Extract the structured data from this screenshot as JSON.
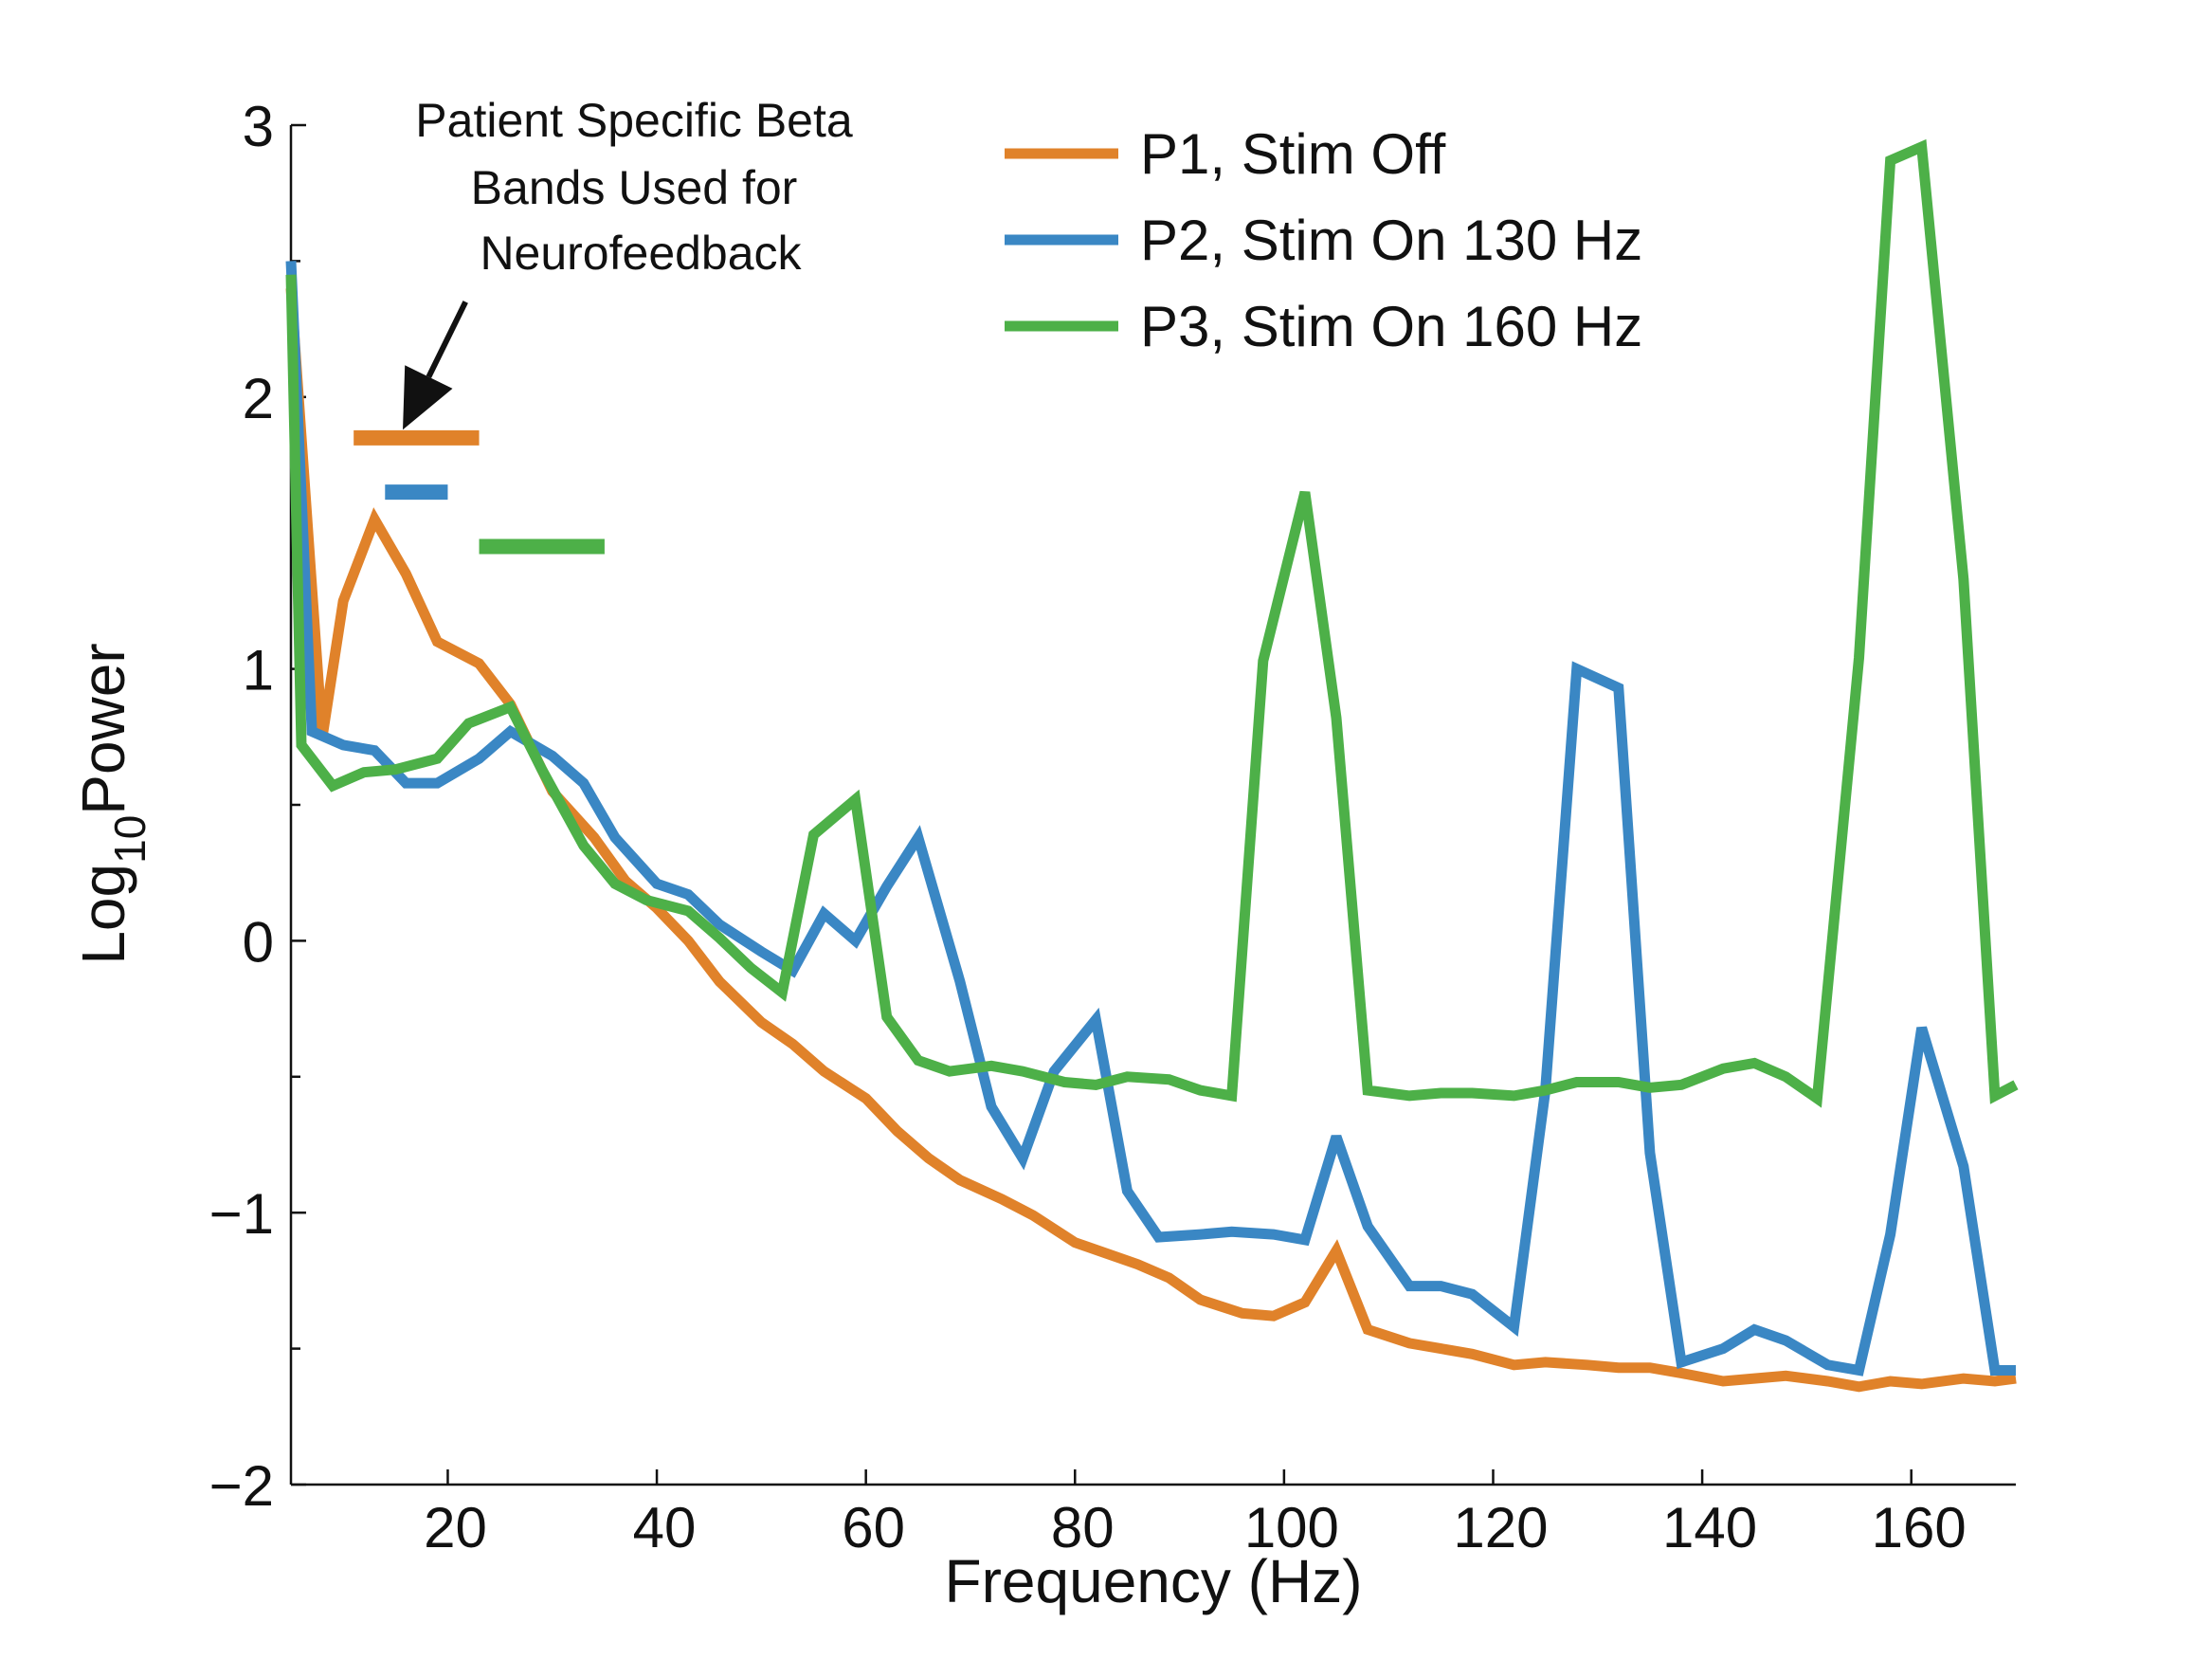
{
  "chart_data": {
    "type": "line",
    "xlabel": "Frequency (Hz)",
    "ylabel": {
      "prefix": "Log",
      "subscript": "10",
      "suffix": "Power"
    },
    "xlim": [
      5,
      170
    ],
    "ylim": [
      -2,
      3
    ],
    "xticks": [
      {
        "value": 20,
        "label": "20"
      },
      {
        "value": 40,
        "label": "40"
      },
      {
        "value": 60,
        "label": "60"
      },
      {
        "value": 80,
        "label": "80"
      },
      {
        "value": 100,
        "label": "100"
      },
      {
        "value": 120,
        "label": "120"
      },
      {
        "value": 140,
        "label": "140"
      },
      {
        "value": 160,
        "label": "160"
      }
    ],
    "yticks": [
      {
        "value": -2,
        "label": "−2"
      },
      {
        "value": -1,
        "label": "−1"
      },
      {
        "value": 0,
        "label": "0"
      },
      {
        "value": 1,
        "label": "1"
      },
      {
        "value": 2,
        "label": "2"
      },
      {
        "value": 3,
        "label": "3"
      }
    ],
    "yminor": [
      -1.5,
      -0.5,
      0.5,
      1.5,
      2.5
    ],
    "grid": false,
    "legend_position": "top-right",
    "annotation": {
      "lines": [
        "Patient Specific Beta",
        "Bands Used for",
        "Neurofeedback"
      ],
      "arrow_from": [
        21.7,
        2.35
      ],
      "arrow_to": [
        15.7,
        1.88
      ]
    },
    "series": [
      {
        "name": "P1, Stim Off",
        "color": "#E0822A",
        "band": [
          11,
          23
        ],
        "band_y": 1.85,
        "x": [
          5,
          8,
          10,
          13,
          16,
          19,
          23,
          26,
          30,
          34,
          37,
          40,
          43,
          46,
          50,
          53,
          56,
          60,
          63,
          66,
          69,
          73,
          76,
          80,
          83,
          86,
          89,
          92,
          96,
          99,
          102,
          105,
          108,
          112,
          115,
          118,
          122,
          125,
          129,
          132,
          135,
          138,
          142,
          145,
          148,
          152,
          155,
          158,
          161,
          165,
          168,
          170
        ],
        "y": [
          2.4,
          0.75,
          1.25,
          1.55,
          1.35,
          1.1,
          1.02,
          0.87,
          0.55,
          0.38,
          0.22,
          0.12,
          0.0,
          -0.15,
          -0.3,
          -0.38,
          -0.48,
          -0.58,
          -0.7,
          -0.8,
          -0.88,
          -0.95,
          -1.01,
          -1.11,
          -1.15,
          -1.19,
          -1.24,
          -1.32,
          -1.37,
          -1.38,
          -1.33,
          -1.14,
          -1.43,
          -1.48,
          -1.5,
          -1.52,
          -1.56,
          -1.55,
          -1.56,
          -1.57,
          -1.57,
          -1.59,
          -1.62,
          -1.61,
          -1.6,
          -1.62,
          -1.64,
          -1.62,
          -1.63,
          -1.61,
          -1.62,
          -1.61
        ]
      },
      {
        "name": "P2, Stim On 130 Hz",
        "color": "#3A87C4",
        "band": [
          14,
          20
        ],
        "band_y": 1.65,
        "x": [
          5,
          7,
          10,
          13,
          16,
          19,
          23,
          26,
          30,
          33,
          36,
          40,
          43,
          46,
          50,
          53,
          56,
          59,
          62,
          65,
          69,
          72,
          75,
          78,
          82,
          85,
          88,
          92,
          95,
          99,
          102,
          105,
          108,
          112,
          115,
          118,
          122,
          125,
          128,
          132,
          135,
          138,
          142,
          145,
          148,
          152,
          155,
          158,
          161,
          165,
          168,
          170
        ],
        "y": [
          2.5,
          0.77,
          0.72,
          0.7,
          0.58,
          0.58,
          0.67,
          0.77,
          0.68,
          0.58,
          0.38,
          0.21,
          0.17,
          0.06,
          -0.04,
          -0.11,
          0.1,
          0.0,
          0.2,
          0.38,
          -0.15,
          -0.61,
          -0.8,
          -0.48,
          -0.29,
          -0.92,
          -1.09,
          -1.08,
          -1.07,
          -1.08,
          -1.1,
          -0.72,
          -1.05,
          -1.27,
          -1.27,
          -1.3,
          -1.42,
          -0.55,
          1.0,
          0.93,
          -0.78,
          -1.55,
          -1.5,
          -1.43,
          -1.47,
          -1.56,
          -1.58,
          -1.08,
          -0.32,
          -0.83,
          -1.58,
          -1.58
        ]
      },
      {
        "name": "P3, Stim On 160 Hz",
        "color": "#4DB048",
        "band": [
          23,
          35
        ],
        "band_y": 1.45,
        "x": [
          5,
          6,
          9,
          12,
          15,
          19,
          22,
          26,
          29,
          33,
          36,
          39,
          43,
          46,
          49,
          52,
          55,
          59,
          62,
          65,
          68,
          72,
          75,
          79,
          82,
          85,
          89,
          92,
          95,
          98,
          102,
          105,
          108,
          112,
          115,
          118,
          122,
          125,
          128,
          132,
          135,
          138,
          142,
          145,
          148,
          151,
          155,
          158,
          161,
          165,
          168,
          170
        ],
        "y": [
          2.45,
          0.72,
          0.57,
          0.62,
          0.63,
          0.67,
          0.8,
          0.86,
          0.63,
          0.35,
          0.21,
          0.15,
          0.11,
          0.01,
          -0.1,
          -0.19,
          0.39,
          0.52,
          -0.28,
          -0.44,
          -0.48,
          -0.46,
          -0.48,
          -0.52,
          -0.53,
          -0.5,
          -0.51,
          -0.55,
          -0.57,
          1.03,
          1.65,
          0.82,
          -0.55,
          -0.57,
          -0.56,
          -0.56,
          -0.57,
          -0.55,
          -0.52,
          -0.52,
          -0.54,
          -0.53,
          -0.47,
          -0.45,
          -0.5,
          -0.58,
          1.04,
          2.87,
          2.92,
          1.33,
          -0.57,
          -0.53
        ]
      }
    ]
  }
}
